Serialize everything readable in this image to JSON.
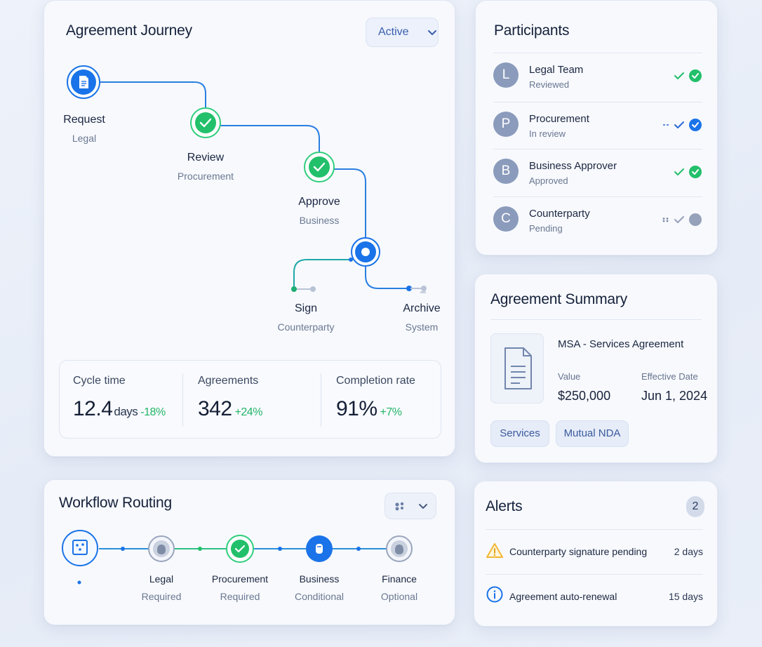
{
  "journey": {
    "title": "Agreement Journey",
    "status_filter": "Active",
    "steps": [
      {
        "title": "Request",
        "subtitle": "Legal",
        "state": "current"
      },
      {
        "title": "Review",
        "subtitle": "Procurement",
        "state": "done"
      },
      {
        "title": "Approve",
        "subtitle": "Business",
        "state": "done"
      },
      {
        "title": "Sign",
        "subtitle": "Counterparty",
        "state": "branch"
      },
      {
        "title": "Archive",
        "subtitle": "System",
        "state": "branch"
      }
    ],
    "metrics": [
      {
        "label": "Cycle time",
        "value": "12.4",
        "unit": "days",
        "delta": "-18%"
      },
      {
        "label": "Agreements",
        "value": "342",
        "unit": "",
        "delta": "+24%"
      },
      {
        "label": "Completion rate",
        "value": "91%",
        "unit": "",
        "delta": "+7%"
      }
    ]
  },
  "participants": {
    "title": "Participants",
    "items": [
      {
        "initial": "L",
        "name": "Legal Team",
        "status": "Reviewed",
        "state": "approved"
      },
      {
        "initial": "P",
        "name": "Procurement",
        "status": "In review",
        "state": "in-review"
      },
      {
        "initial": "B",
        "name": "Business Approver",
        "status": "Approved",
        "state": "approved"
      },
      {
        "initial": "C",
        "name": "Counterparty",
        "status": "Pending",
        "state": "pending"
      }
    ]
  },
  "summary": {
    "title": "Agreement Summary",
    "name": "MSA - Services Agreement",
    "value_label": "Value",
    "value": "$250,000",
    "date_label": "Effective Date",
    "date": "Jun 1, 2024",
    "tags": [
      "Services",
      "Mutual NDA"
    ]
  },
  "workflow": {
    "title": "Workflow Routing",
    "steps": [
      {
        "title": "",
        "subtitle": "",
        "state": "start"
      },
      {
        "title": "Legal",
        "subtitle": "Required",
        "state": "pending"
      },
      {
        "title": "Procurement",
        "subtitle": "Required",
        "state": "done"
      },
      {
        "title": "Business",
        "subtitle": "Conditional",
        "state": "current"
      },
      {
        "title": "Finance",
        "subtitle": "Optional",
        "state": "pending"
      }
    ]
  },
  "alerts": {
    "title": "Alerts",
    "count": "2",
    "items": [
      {
        "icon": "warning-icon",
        "text": "Counterparty signature pending",
        "time": "2 days"
      },
      {
        "icon": "info-icon",
        "text": "Agreement auto-renewal",
        "time": "15 days"
      }
    ]
  },
  "colors": {
    "accent": "#1a73e8",
    "success": "#22c06b",
    "warning": "#f2b632",
    "avatar": "#8b9bbc"
  }
}
